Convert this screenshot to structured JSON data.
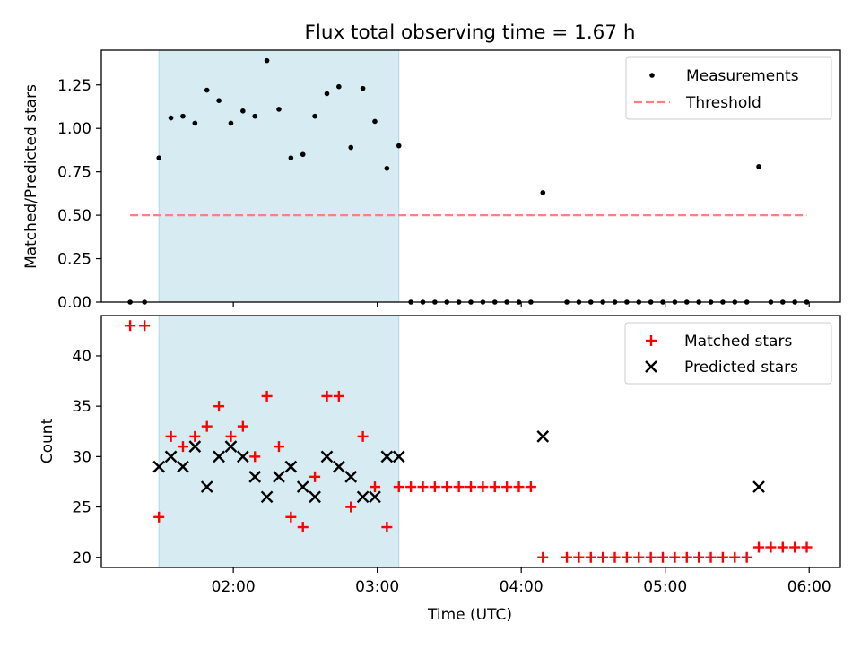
{
  "title": "Flux total observing time = 1.67 h",
  "chart_data": [
    {
      "type": "scatter",
      "ylabel": "Matched/Predicted stars",
      "xlim": [
        "01:05",
        "06:13"
      ],
      "ylim": [
        0,
        1.45
      ],
      "yticks": [
        "0.00",
        "0.25",
        "0.50",
        "0.75",
        "1.00",
        "1.25"
      ],
      "xticks": [
        "02:00",
        "03:00",
        "04:00",
        "05:00",
        "06:00"
      ],
      "shaded_span": [
        "01:29",
        "03:09"
      ],
      "shaded_color": "#add8e6",
      "legend_position": "upper right",
      "series": [
        {
          "name": "Measurements",
          "marker": "dot",
          "color": "#000000",
          "points": [
            [
              "01:17",
              0
            ],
            [
              "01:23",
              0
            ],
            [
              "01:29",
              0.83
            ],
            [
              "01:34",
              1.06
            ],
            [
              "01:39",
              1.07
            ],
            [
              "01:44",
              1.03
            ],
            [
              "01:49",
              1.22
            ],
            [
              "01:54",
              1.16
            ],
            [
              "01:59",
              1.03
            ],
            [
              "02:04",
              1.1
            ],
            [
              "02:09",
              1.07
            ],
            [
              "02:14",
              1.39
            ],
            [
              "02:19",
              1.11
            ],
            [
              "02:24",
              0.83
            ],
            [
              "02:29",
              0.85
            ],
            [
              "02:34",
              1.07
            ],
            [
              "02:39",
              1.2
            ],
            [
              "02:44",
              1.24
            ],
            [
              "02:49",
              0.89
            ],
            [
              "02:54",
              1.23
            ],
            [
              "02:59",
              1.04
            ],
            [
              "03:04",
              0.77
            ],
            [
              "03:09",
              0.9
            ],
            [
              "03:14",
              0
            ],
            [
              "03:19",
              0
            ],
            [
              "03:24",
              0
            ],
            [
              "03:29",
              0
            ],
            [
              "03:34",
              0
            ],
            [
              "03:39",
              0
            ],
            [
              "03:44",
              0
            ],
            [
              "03:49",
              0
            ],
            [
              "03:54",
              0
            ],
            [
              "03:59",
              0
            ],
            [
              "04:04",
              0
            ],
            [
              "04:09",
              0.63
            ],
            [
              "04:19",
              0
            ],
            [
              "04:24",
              0
            ],
            [
              "04:29",
              0
            ],
            [
              "04:34",
              0
            ],
            [
              "04:39",
              0
            ],
            [
              "04:44",
              0
            ],
            [
              "04:49",
              0
            ],
            [
              "04:54",
              0
            ],
            [
              "04:59",
              0
            ],
            [
              "05:04",
              0
            ],
            [
              "05:09",
              0
            ],
            [
              "05:14",
              0
            ],
            [
              "05:19",
              0
            ],
            [
              "05:24",
              0
            ],
            [
              "05:29",
              0
            ],
            [
              "05:34",
              0
            ],
            [
              "05:39",
              0.78
            ],
            [
              "05:44",
              0
            ],
            [
              "05:49",
              0
            ],
            [
              "05:54",
              0
            ],
            [
              "05:59",
              0
            ]
          ]
        },
        {
          "name": "Threshold",
          "type": "line",
          "style": "dashed",
          "color": "#ff7f7f",
          "points": [
            [
              "01:17",
              0.5
            ],
            [
              "05:59",
              0.5
            ]
          ]
        }
      ]
    },
    {
      "type": "scatter",
      "xlabel": "Time (UTC)",
      "ylabel": "Count",
      "xlim": [
        "01:05",
        "06:13"
      ],
      "ylim": [
        19,
        44
      ],
      "yticks": [
        "20",
        "25",
        "30",
        "35",
        "40"
      ],
      "xticks": [
        "02:00",
        "03:00",
        "04:00",
        "05:00",
        "06:00"
      ],
      "shaded_span": [
        "01:29",
        "03:09"
      ],
      "shaded_color": "#add8e6",
      "legend_position": "upper right",
      "series": [
        {
          "name": "Matched stars",
          "marker": "plus",
          "color": "#ff0000",
          "points": [
            [
              "01:17",
              43
            ],
            [
              "01:23",
              43
            ],
            [
              "01:29",
              24
            ],
            [
              "01:34",
              32
            ],
            [
              "01:39",
              31
            ],
            [
              "01:44",
              32
            ],
            [
              "01:49",
              33
            ],
            [
              "01:54",
              35
            ],
            [
              "01:59",
              32
            ],
            [
              "02:04",
              33
            ],
            [
              "02:09",
              30
            ],
            [
              "02:14",
              36
            ],
            [
              "02:19",
              31
            ],
            [
              "02:24",
              24
            ],
            [
              "02:29",
              23
            ],
            [
              "02:34",
              28
            ],
            [
              "02:39",
              36
            ],
            [
              "02:44",
              36
            ],
            [
              "02:49",
              25
            ],
            [
              "02:54",
              32
            ],
            [
              "02:59",
              27
            ],
            [
              "03:04",
              23
            ],
            [
              "03:09",
              27
            ],
            [
              "03:14",
              27
            ],
            [
              "03:19",
              27
            ],
            [
              "03:24",
              27
            ],
            [
              "03:29",
              27
            ],
            [
              "03:34",
              27
            ],
            [
              "03:39",
              27
            ],
            [
              "03:44",
              27
            ],
            [
              "03:49",
              27
            ],
            [
              "03:54",
              27
            ],
            [
              "03:59",
              27
            ],
            [
              "04:04",
              27
            ],
            [
              "04:09",
              20
            ],
            [
              "04:19",
              20
            ],
            [
              "04:24",
              20
            ],
            [
              "04:29",
              20
            ],
            [
              "04:34",
              20
            ],
            [
              "04:39",
              20
            ],
            [
              "04:44",
              20
            ],
            [
              "04:49",
              20
            ],
            [
              "04:54",
              20
            ],
            [
              "04:59",
              20
            ],
            [
              "05:04",
              20
            ],
            [
              "05:09",
              20
            ],
            [
              "05:14",
              20
            ],
            [
              "05:19",
              20
            ],
            [
              "05:24",
              20
            ],
            [
              "05:29",
              20
            ],
            [
              "05:34",
              20
            ],
            [
              "05:39",
              21
            ],
            [
              "05:44",
              21
            ],
            [
              "05:49",
              21
            ],
            [
              "05:54",
              21
            ],
            [
              "05:59",
              21
            ]
          ]
        },
        {
          "name": "Predicted stars",
          "marker": "x",
          "color": "#000000",
          "points": [
            [
              "01:29",
              29
            ],
            [
              "01:34",
              30
            ],
            [
              "01:39",
              29
            ],
            [
              "01:44",
              31
            ],
            [
              "01:49",
              27
            ],
            [
              "01:54",
              30
            ],
            [
              "01:59",
              31
            ],
            [
              "02:04",
              30
            ],
            [
              "02:09",
              28
            ],
            [
              "02:14",
              26
            ],
            [
              "02:19",
              28
            ],
            [
              "02:24",
              29
            ],
            [
              "02:29",
              27
            ],
            [
              "02:34",
              26
            ],
            [
              "02:39",
              30
            ],
            [
              "02:44",
              29
            ],
            [
              "02:49",
              28
            ],
            [
              "02:54",
              26
            ],
            [
              "02:59",
              26
            ],
            [
              "03:04",
              30
            ],
            [
              "03:09",
              30
            ],
            [
              "04:09",
              32
            ],
            [
              "05:39",
              27
            ]
          ]
        }
      ]
    }
  ]
}
